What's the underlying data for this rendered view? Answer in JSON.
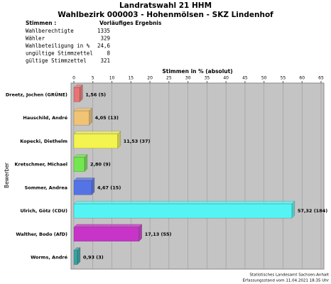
{
  "header": {
    "title": "Landratswahl 21 HHM",
    "subtitle": "Wahlbezirk 000003 - Hohenmölsen - SKZ Lindenhof"
  },
  "stats": {
    "label": "Stimmen :",
    "caption": "Vorläufiges Ergebnis",
    "rows": [
      [
        "Wahlberechtigte",
        "1335"
      ],
      [
        "Wähler",
        "329"
      ],
      [
        "Wahlbeteiligung in %",
        "24,6"
      ],
      [
        "ungültige Stimmzettel",
        "8"
      ],
      [
        "gültige Stimmzettel",
        "321"
      ]
    ]
  },
  "chart_data": {
    "type": "bar",
    "orientation": "horizontal",
    "x_label": "Stimmen in % (absolut)",
    "y_label": "Bewerber",
    "categories": [
      "Dreetz, Jochen (GRÜNE)",
      "Hauschild, André",
      "Kopecki, Diethelm",
      "Kretschmer, Michael",
      "Sommer, Andrea",
      "Ulrich, Götz (CDU)",
      "Walther, Bodo (AfD)",
      "Worms, André"
    ],
    "values": [
      1.56,
      4.05,
      11.53,
      2.8,
      4.67,
      57.32,
      17.13,
      0.93
    ],
    "value_labels": [
      "1,56 (5)",
      "4,05 (13)",
      "11,53 (37)",
      "2,80 (9)",
      "4,67 (15)",
      "57,32 (184)",
      "17,13 (55)",
      "0,93 (3)"
    ],
    "colors": [
      "#e87474",
      "#f0c474",
      "#f4f450",
      "#74e650",
      "#5474e6",
      "#54f4f4",
      "#c834c8",
      "#34a4a4"
    ],
    "xlim": [
      0,
      65
    ],
    "xticks": [
      0,
      5,
      10,
      15,
      20,
      25,
      30,
      35,
      40,
      45,
      50,
      55,
      60,
      65
    ],
    "grid": true
  },
  "footer": {
    "line1": "Statistisches Landesamt Sachsen-Anhalt",
    "line2": "Erfassungsstand vom 11.04.2021 18:35 Uhr"
  }
}
